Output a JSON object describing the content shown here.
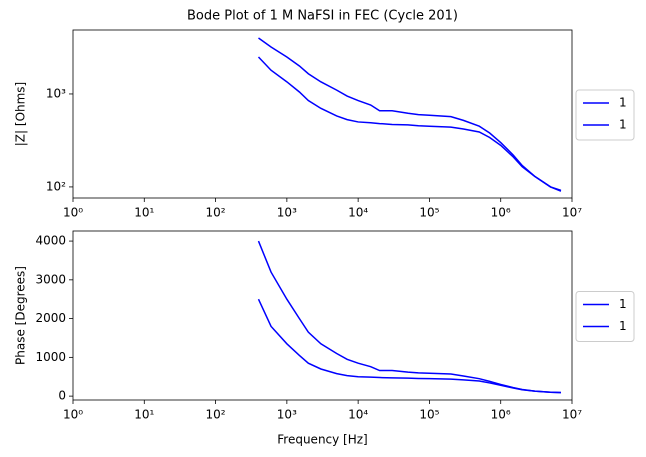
{
  "chart_data": [
    {
      "type": "line",
      "title": "Bode Plot of 1 M NaFSI in FEC (Cycle 201)",
      "ylabel": "|Z| [Ohms]",
      "xscale": "log",
      "yscale": "log",
      "legend": "right",
      "x": [
        400,
        600,
        1000,
        1500,
        2000,
        3000,
        5000,
        7000,
        10000,
        15000,
        20000,
        30000,
        50000,
        70000,
        100000,
        200000,
        300000,
        500000,
        700000,
        1000000,
        1500000,
        2000000,
        3000000,
        5000000,
        7000000
      ],
      "series": [
        {
          "name": "1",
          "color": "#0000ff",
          "values": [
            4000,
            3200,
            2500,
            2000,
            1650,
            1350,
            1100,
            950,
            850,
            760,
            660,
            660,
            620,
            600,
            590,
            570,
            520,
            450,
            380,
            300,
            220,
            170,
            130,
            100,
            92
          ]
        },
        {
          "name": "1",
          "color": "#0000ff",
          "values": [
            2500,
            1800,
            1350,
            1050,
            850,
            700,
            580,
            530,
            500,
            490,
            480,
            470,
            465,
            455,
            450,
            440,
            420,
            390,
            340,
            280,
            210,
            165,
            130,
            100,
            90
          ]
        }
      ],
      "xlim": [
        1,
        10000000
      ],
      "ylim": [
        76,
        4875
      ],
      "xticks": [
        {
          "value": 1,
          "label": "10⁰"
        },
        {
          "value": 10,
          "label": "10¹"
        },
        {
          "value": 100,
          "label": "10²"
        },
        {
          "value": 1000,
          "label": "10³"
        },
        {
          "value": 10000,
          "label": "10⁴"
        },
        {
          "value": 100000,
          "label": "10⁵"
        },
        {
          "value": 1000000,
          "label": "10⁶"
        },
        {
          "value": 10000000,
          "label": "10⁷"
        }
      ],
      "yticks": [
        {
          "value": 100,
          "label": "10²"
        },
        {
          "value": 1000,
          "label": "10³"
        }
      ]
    },
    {
      "type": "line",
      "xlabel": "Frequency [Hz]",
      "ylabel": "Phase [Degrees]",
      "xscale": "log",
      "yscale": "linear",
      "legend": "right",
      "x": [
        400,
        600,
        1000,
        1500,
        2000,
        3000,
        5000,
        7000,
        10000,
        15000,
        20000,
        30000,
        50000,
        70000,
        100000,
        200000,
        300000,
        500000,
        700000,
        1000000,
        1500000,
        2000000,
        3000000,
        5000000,
        7000000
      ],
      "series": [
        {
          "name": "1",
          "color": "#0000ff",
          "values": [
            4000,
            3200,
            2500,
            2000,
            1650,
            1350,
            1100,
            950,
            850,
            760,
            660,
            660,
            620,
            600,
            590,
            570,
            520,
            450,
            380,
            300,
            220,
            170,
            130,
            100,
            92
          ]
        },
        {
          "name": "1",
          "color": "#0000ff",
          "values": [
            2500,
            1800,
            1350,
            1050,
            850,
            700,
            580,
            530,
            500,
            490,
            480,
            470,
            465,
            455,
            450,
            440,
            420,
            390,
            340,
            280,
            210,
            165,
            130,
            100,
            90
          ]
        }
      ],
      "xlim": [
        1,
        10000000
      ],
      "ylim": [
        -100,
        4260
      ],
      "xticks": [
        {
          "value": 1,
          "label": "10⁰"
        },
        {
          "value": 10,
          "label": "10¹"
        },
        {
          "value": 100,
          "label": "10²"
        },
        {
          "value": 1000,
          "label": "10³"
        },
        {
          "value": 10000,
          "label": "10⁴"
        },
        {
          "value": 100000,
          "label": "10⁵"
        },
        {
          "value": 1000000,
          "label": "10⁶"
        },
        {
          "value": 10000000,
          "label": "10⁷"
        }
      ],
      "yticks": [
        0,
        1000,
        2000,
        3000,
        4000
      ]
    }
  ]
}
